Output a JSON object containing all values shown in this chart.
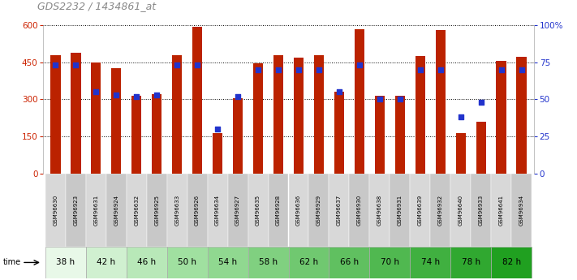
{
  "title": "GDS2232 / 1434861_at",
  "samples": [
    "GSM96630",
    "GSM96923",
    "GSM96631",
    "GSM96924",
    "GSM96632",
    "GSM96925",
    "GSM96633",
    "GSM96926",
    "GSM96634",
    "GSM96927",
    "GSM96635",
    "GSM96928",
    "GSM96636",
    "GSM96929",
    "GSM96637",
    "GSM96930",
    "GSM96638",
    "GSM96931",
    "GSM96639",
    "GSM96932",
    "GSM96640",
    "GSM96933",
    "GSM96641",
    "GSM96934"
  ],
  "counts": [
    480,
    490,
    448,
    425,
    315,
    322,
    480,
    595,
    165,
    305,
    445,
    480,
    468,
    480,
    330,
    585,
    315,
    315,
    475,
    580,
    165,
    210,
    455,
    472
  ],
  "percentiles": [
    73,
    73,
    55,
    53,
    52,
    53,
    73,
    73,
    30,
    52,
    70,
    70,
    70,
    70,
    55,
    73,
    50,
    50,
    70,
    70,
    38,
    48,
    70,
    70
  ],
  "time_groups": [
    {
      "label": "38 h",
      "start": 0,
      "end": 2,
      "color": "#e8f8e8"
    },
    {
      "label": "42 h",
      "start": 2,
      "end": 4,
      "color": "#d0f0d0"
    },
    {
      "label": "46 h",
      "start": 4,
      "end": 6,
      "color": "#b8e8b8"
    },
    {
      "label": "50 h",
      "start": 6,
      "end": 8,
      "color": "#a0e0a0"
    },
    {
      "label": "54 h",
      "start": 8,
      "end": 10,
      "color": "#90d890"
    },
    {
      "label": "58 h",
      "start": 10,
      "end": 12,
      "color": "#80d080"
    },
    {
      "label": "62 h",
      "start": 12,
      "end": 14,
      "color": "#70c870"
    },
    {
      "label": "66 h",
      "start": 14,
      "end": 16,
      "color": "#60c060"
    },
    {
      "label": "70 h",
      "start": 16,
      "end": 18,
      "color": "#50b850"
    },
    {
      "label": "74 h",
      "start": 18,
      "end": 20,
      "color": "#40b040"
    },
    {
      "label": "78 h",
      "start": 20,
      "end": 22,
      "color": "#30a830"
    },
    {
      "label": "82 h",
      "start": 22,
      "end": 24,
      "color": "#20a020"
    }
  ],
  "bar_color": "#bb2200",
  "dot_color": "#2233cc",
  "bar_width": 0.5,
  "ylim_left": [
    0,
    600
  ],
  "ylim_right": [
    0,
    100
  ],
  "yticks_left": [
    0,
    150,
    300,
    450,
    600
  ],
  "yticks_right": [
    0,
    25,
    50,
    75,
    100
  ],
  "xlabel_color": "#cc2200",
  "ylabel_right_color": "#2233cc",
  "title_color": "#888888"
}
